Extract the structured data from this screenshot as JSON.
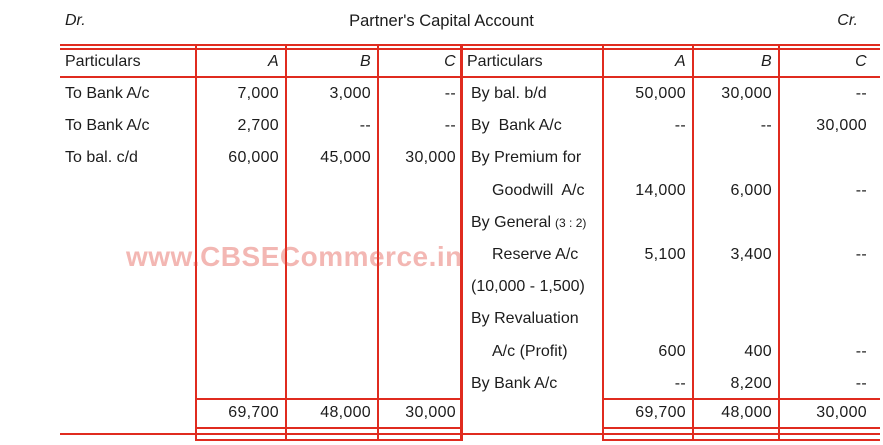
{
  "account": {
    "dr_label": "Dr.",
    "title": "Partner's Capital Account",
    "cr_label": "Cr.",
    "column_headers": {
      "particulars": "Particulars",
      "a": "A",
      "b": "B",
      "c": "C"
    },
    "debit": {
      "rows": [
        {
          "particulars": "To Bank A/c",
          "a": "7,000",
          "b": "3,000",
          "c": "--"
        },
        {
          "particulars": "To Bank A/c",
          "a": "2,700",
          "b": "--",
          "c": "--"
        },
        {
          "particulars": "To bal. c/d",
          "a": "60,000",
          "b": "45,000",
          "c": "30,000"
        }
      ],
      "total": {
        "a": "69,700",
        "b": "48,000",
        "c": "30,000"
      }
    },
    "credit": {
      "rows": [
        {
          "particulars": "By bal. b/d",
          "a": "50,000",
          "b": "30,000",
          "c": "--"
        },
        {
          "particulars": "By  Bank A/c",
          "a": "--",
          "b": "--",
          "c": "30,000"
        },
        {
          "particulars": "By Premium for",
          "a": "",
          "b": "",
          "c": ""
        },
        {
          "particulars": "Goodwill  A/c",
          "indent": true,
          "a": "14,000",
          "b": "6,000",
          "c": "--"
        },
        {
          "particulars": "By General",
          "suffix": "(3 : 2)",
          "a": "",
          "b": "",
          "c": ""
        },
        {
          "particulars": "Reserve A/c",
          "indent": true,
          "a": "5,100",
          "b": "3,400",
          "c": "--"
        },
        {
          "particulars": "(10,000 - 1,500)",
          "a": "",
          "b": "",
          "c": ""
        },
        {
          "particulars": "By Revaluation",
          "a": "",
          "b": "",
          "c": ""
        },
        {
          "particulars": "A/c (Profit)",
          "indent": true,
          "a": "600",
          "b": "400",
          "c": "--"
        },
        {
          "particulars": "By Bank A/c",
          "a": "--",
          "b": "8,200",
          "c": "--"
        }
      ],
      "total": {
        "a": "69,700",
        "b": "48,000",
        "c": "30,000"
      }
    }
  },
  "watermark": "www.CBSECommerce.in",
  "colors": {
    "rule_red": "#e02b1f",
    "text": "#1c1c1c",
    "watermark_pink": "rgba(225,75,66,0.40)"
  }
}
